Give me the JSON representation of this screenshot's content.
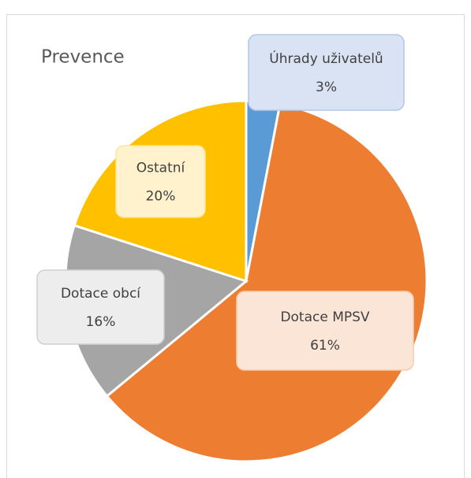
{
  "chart_data": {
    "type": "pie",
    "title": "Prevence",
    "categories": [
      "Úhrady uživatelů",
      "Dotace MPSV",
      "Dotace obcí",
      "Ostatní"
    ],
    "values": [
      3,
      61,
      16,
      20
    ],
    "value_labels": [
      "3%",
      "61%",
      "16%",
      "20%"
    ],
    "colors": [
      "#5b9bd5",
      "#ed7d31",
      "#a5a5a5",
      "#ffc000"
    ]
  }
}
